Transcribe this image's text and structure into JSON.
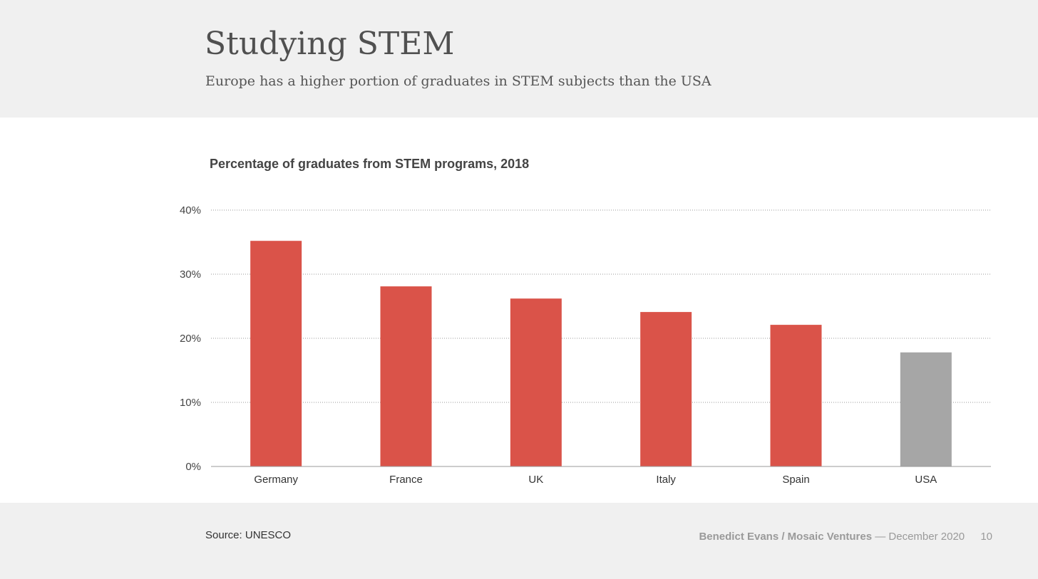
{
  "slide": {
    "title": "Studying STEM",
    "subtitle": "Europe has a higher portion of graduates in STEM subjects than the USA"
  },
  "footer": {
    "source": "Source: UNESCO",
    "author": "Benedict Evans / Mosaic Ventures",
    "date": "— December 2020",
    "page": "10"
  },
  "colors": {
    "europe_bar": "#da5349",
    "usa_bar": "#a6a6a6",
    "header_background": "#f0f0f0"
  },
  "chart_data": {
    "type": "bar",
    "title": "Percentage of graduates from STEM programs, 2018",
    "categories": [
      "Germany",
      "France",
      "UK",
      "Italy",
      "Spain",
      "USA"
    ],
    "values": [
      35.2,
      28.1,
      26.2,
      24.1,
      22.1,
      17.8
    ],
    "bar_colors": [
      "#da5349",
      "#da5349",
      "#da5349",
      "#da5349",
      "#da5349",
      "#a6a6a6"
    ],
    "ylim": [
      0,
      40
    ],
    "yticks": [
      0,
      10,
      20,
      30,
      40
    ],
    "ytick_labels": [
      "0%",
      "10%",
      "20%",
      "30%",
      "40%"
    ],
    "grid": true,
    "legend": "none"
  }
}
